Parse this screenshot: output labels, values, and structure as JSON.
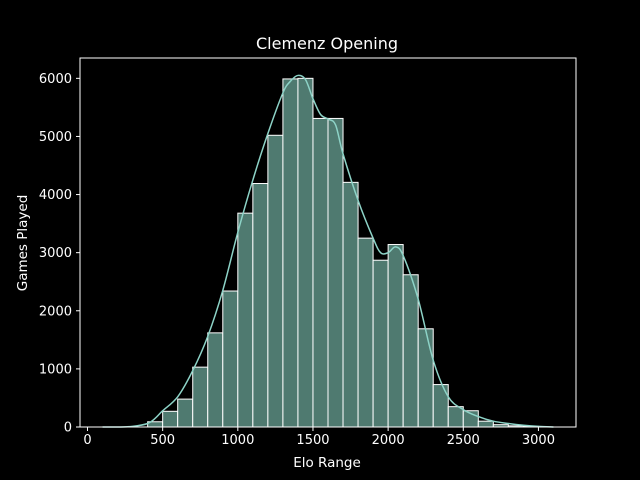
{
  "chart_data": {
    "type": "bar",
    "subtype": "histogram-with-kde",
    "title": "Clemenz Opening",
    "xlabel": "Elo Range",
    "ylabel": "Games Played",
    "xlim": [
      -50,
      3250
    ],
    "ylim": [
      0,
      6350
    ],
    "xticks": [
      0,
      500,
      1000,
      1500,
      2000,
      2500,
      3000
    ],
    "yticks": [
      0,
      1000,
      2000,
      3000,
      4000,
      5000,
      6000
    ],
    "grid": false,
    "legend": "none",
    "bin_width": 100,
    "bins": [
      {
        "x0": 100,
        "x1": 200,
        "count": 0
      },
      {
        "x0": 200,
        "x1": 300,
        "count": 0
      },
      {
        "x0": 300,
        "x1": 400,
        "count": 0
      },
      {
        "x0": 400,
        "x1": 500,
        "count": 90
      },
      {
        "x0": 500,
        "x1": 600,
        "count": 270
      },
      {
        "x0": 600,
        "x1": 700,
        "count": 480
      },
      {
        "x0": 700,
        "x1": 800,
        "count": 1030
      },
      {
        "x0": 800,
        "x1": 900,
        "count": 1620
      },
      {
        "x0": 900,
        "x1": 1000,
        "count": 2340
      },
      {
        "x0": 1000,
        "x1": 1100,
        "count": 3680
      },
      {
        "x0": 1100,
        "x1": 1200,
        "count": 4190
      },
      {
        "x0": 1200,
        "x1": 1300,
        "count": 5020
      },
      {
        "x0": 1300,
        "x1": 1400,
        "count": 5990
      },
      {
        "x0": 1400,
        "x1": 1500,
        "count": 6000
      },
      {
        "x0": 1500,
        "x1": 1600,
        "count": 5310
      },
      {
        "x0": 1600,
        "x1": 1700,
        "count": 5310
      },
      {
        "x0": 1700,
        "x1": 1800,
        "count": 4210
      },
      {
        "x0": 1800,
        "x1": 1900,
        "count": 3250
      },
      {
        "x0": 1900,
        "x1": 2000,
        "count": 2870
      },
      {
        "x0": 2000,
        "x1": 2100,
        "count": 3140
      },
      {
        "x0": 2100,
        "x1": 2200,
        "count": 2620
      },
      {
        "x0": 2200,
        "x1": 2300,
        "count": 1690
      },
      {
        "x0": 2300,
        "x1": 2400,
        "count": 730
      },
      {
        "x0": 2400,
        "x1": 2500,
        "count": 350
      },
      {
        "x0": 2500,
        "x1": 2600,
        "count": 280
      },
      {
        "x0": 2600,
        "x1": 2700,
        "count": 100
      },
      {
        "x0": 2700,
        "x1": 2800,
        "count": 40
      },
      {
        "x0": 2800,
        "x1": 2900,
        "count": 20
      },
      {
        "x0": 2900,
        "x1": 3000,
        "count": 10
      },
      {
        "x0": 3000,
        "x1": 3100,
        "count": 0
      }
    ],
    "kde": {
      "x": [
        100,
        200,
        300,
        400,
        450,
        500,
        600,
        700,
        800,
        900,
        1000,
        1100,
        1200,
        1300,
        1350,
        1400,
        1450,
        1500,
        1550,
        1600,
        1650,
        1700,
        1800,
        1900,
        1950,
        2000,
        2050,
        2100,
        2200,
        2300,
        2400,
        2500,
        2600,
        2700,
        2800,
        2900,
        3000,
        3100
      ],
      "y": [
        0,
        0,
        10,
        60,
        150,
        280,
        520,
        970,
        1560,
        2350,
        3350,
        4250,
        5050,
        5750,
        5950,
        6050,
        5980,
        5650,
        5380,
        5300,
        5200,
        4700,
        3900,
        3250,
        3000,
        3000,
        3100,
        2950,
        2200,
        1150,
        520,
        300,
        180,
        100,
        60,
        30,
        10,
        0
      ]
    },
    "colors": {
      "bar_fill": "#4f7a70",
      "bar_edge": "#ffffff",
      "kde_line": "#8dd3c7",
      "axes": "#ffffff",
      "background": "#000000"
    }
  }
}
